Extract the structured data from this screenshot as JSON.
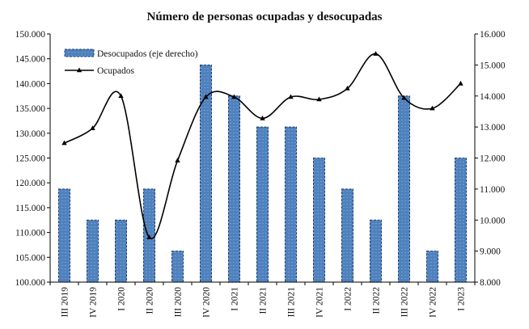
{
  "chart_data": {
    "type": "bar+line",
    "title": "Número de personas ocupadas y desocupadas",
    "categories": [
      "III 2019",
      "IV 2019",
      "I 2020",
      "II 2020",
      "III 2020",
      "IV 2020",
      "I 2021",
      "II 2021",
      "III 2021",
      "IV 2021",
      "I 2022",
      "II 2022",
      "III 2022",
      "IV 2022",
      "I 2023"
    ],
    "series": [
      {
        "name": "Desocupados (eje derecho)",
        "type": "bar",
        "axis": "right",
        "color": "#4f81bd",
        "values": [
          11000,
          10000,
          10000,
          11000,
          9000,
          15000,
          14000,
          13000,
          13000,
          12000,
          11000,
          10000,
          14000,
          9000,
          12000
        ]
      },
      {
        "name": "Ocupados",
        "type": "line",
        "axis": "left",
        "color": "#000000",
        "values": [
          128000,
          131000,
          137500,
          109000,
          124500,
          137300,
          137300,
          133000,
          137300,
          136800,
          139000,
          146000,
          137100,
          135000,
          140000
        ]
      }
    ],
    "ylim_left": [
      100000,
      150000
    ],
    "ylim_right": [
      8000,
      16000
    ],
    "yticks_left": [
      "100.000",
      "105.000",
      "110.000",
      "115.000",
      "120.000",
      "125.000",
      "130.000",
      "135.000",
      "140.000",
      "145.000",
      "150.000"
    ],
    "yticks_right": [
      "8.000",
      "9.000",
      "10.000",
      "11.000",
      "12.000",
      "13.000",
      "14.000",
      "15.000",
      "16.000"
    ],
    "legend_position": "top-left",
    "grid": false
  }
}
